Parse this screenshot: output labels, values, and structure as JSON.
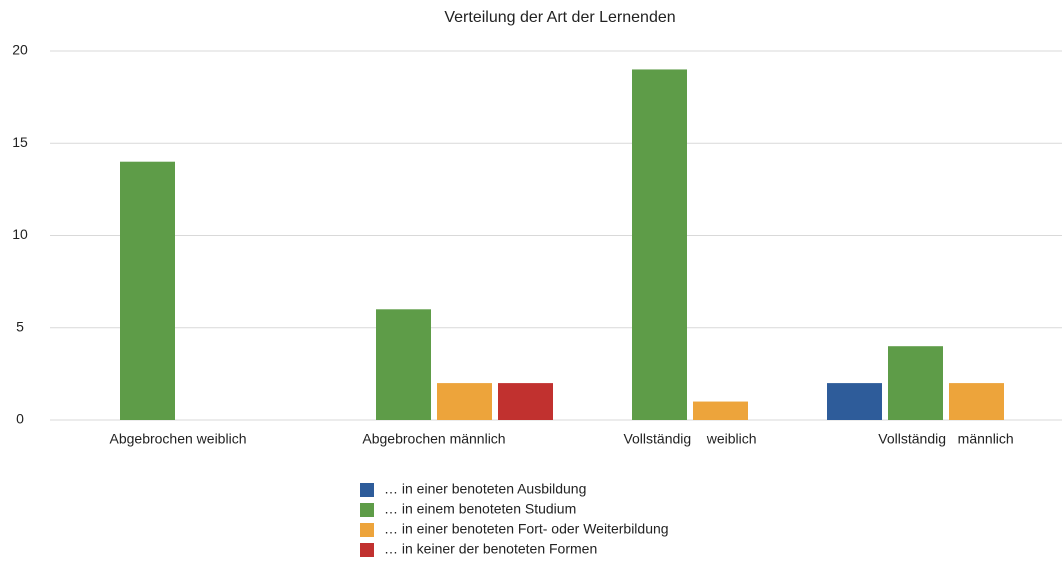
{
  "chart_data": {
    "type": "bar",
    "title": "Verteilung der Art der Lernenden",
    "categories": [
      "Abgebrochen weiblich",
      "Abgebrochen männlich",
      "Vollständig    weiblich",
      "Vollständig   männlich"
    ],
    "series": [
      {
        "name": "… in einer benoteten Ausbildung",
        "color": "#2e5c9a",
        "values": [
          0,
          0,
          0,
          2
        ]
      },
      {
        "name": "… in einem benoteten Studium",
        "color": "#5e9c48",
        "values": [
          14,
          6,
          19,
          4
        ]
      },
      {
        "name": "… in einer benoteten Fort- oder Weiterbildung",
        "color": "#eda43b",
        "values": [
          0,
          2,
          1,
          2
        ]
      },
      {
        "name": "… in keiner der benoteten Formen",
        "color": "#c1312f",
        "values": [
          0,
          2,
          0,
          0
        ]
      }
    ],
    "ylim": [
      0,
      20
    ],
    "yticks": [
      0,
      5,
      10,
      15,
      20
    ],
    "grid": true,
    "legend": "bottom"
  }
}
